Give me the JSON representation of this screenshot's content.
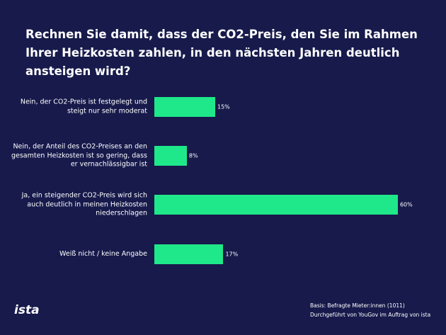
{
  "chart_data": {
    "type": "bar",
    "orientation": "horizontal",
    "title": "Rechnen Sie damit, dass der CO2-Preis,  den Sie im Rahmen Ihrer Heizkosten zahlen, in den nächsten Jahren deutlich ansteigen wird?",
    "categories": [
      "Nein, der CO2-Preis ist festgelegt und steigt nur sehr moderat",
      "Nein, der Anteil des CO2-Preises an den gesamten Heizkosten ist so gering, dass er vernachlässigbar ist",
      "Ja, ein steigender CO2-Preis wird sich auch deutlich in meinen Heizkosten niederschlagen",
      "Weiß nicht / keine Angabe"
    ],
    "values": [
      15,
      8,
      60,
      17
    ],
    "value_labels": [
      "15%",
      "8%",
      "60%",
      "17%"
    ],
    "color": "#1fe88a",
    "notes": [
      "Basis: Befragte Mieter:innen (1011)",
      "Durchgeführt von YouGov im Auftrag von ista"
    ],
    "logo": "ista"
  }
}
